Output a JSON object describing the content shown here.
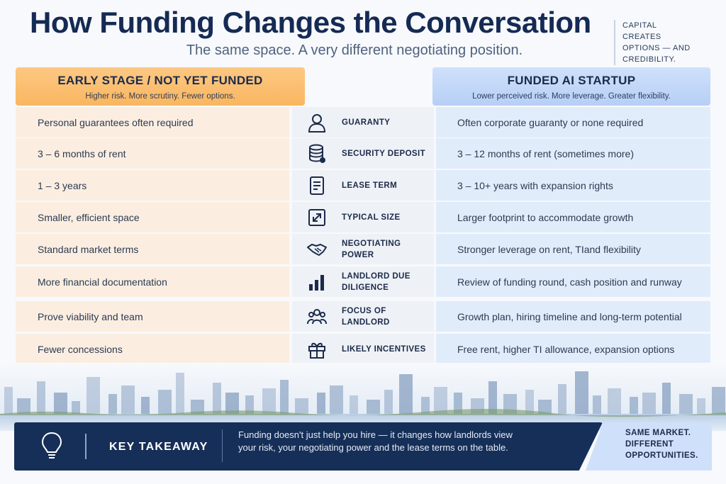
{
  "title": "How Funding Changes the Conversation",
  "subtitle": "The same space. A very different negotiating position.",
  "side_note": "CAPITAL CREATES OPTIONS — AND CREDIBILITY.",
  "left_header": {
    "title": "EARLY STAGE / NOT YET FUNDED",
    "subtitle": "Higher risk. More scrutiny. Fewer options.",
    "color": "#f9b660"
  },
  "right_header": {
    "title": "FUNDED AI STARTUP",
    "subtitle": "Lower perceived risk. More leverage. Greater flexibility.",
    "color": "#b7cff6"
  },
  "rows": [
    {
      "early": "Personal guarantees often required",
      "icon": "person-icon",
      "category": "GUARANTY",
      "funded": "Often corporate guaranty or none required"
    },
    {
      "early": "3 – 6 months of rent",
      "icon": "coin-stack-icon",
      "category": "SECURITY DEPOSIT",
      "funded": "3 – 12 months of rent (sometimes more)"
    },
    {
      "early": "1 – 3 years",
      "icon": "document-icon",
      "category": "LEASE TERM",
      "funded": "3 – 10+ years with expansion rights"
    },
    {
      "early": "Smaller, efficient space",
      "icon": "expand-arrows-icon",
      "category": "TYPICAL SIZE",
      "funded": "Larger footprint to accommodate growth"
    },
    {
      "early": "Standard market terms",
      "icon": "handshake-icon",
      "category": "NEGOTIATING POWER",
      "funded": "Stronger leverage on rent, TIand flexibility"
    },
    {
      "early": "More financial documentation",
      "icon": "bar-chart-icon",
      "category": "LANDLORD DUE DILIGENCE",
      "funded": "Review of funding round, cash position and runway"
    },
    {
      "early": "Prove viability and team",
      "icon": "team-icon",
      "category": "FOCUS OF LANDLORD",
      "funded": "Growth plan, hiring timeline and long-term potential"
    },
    {
      "early": "Fewer concessions",
      "icon": "gift-icon",
      "category": "LIKELY INCENTIVES",
      "funded": "Free rent, higher TI allowance, expansion options"
    }
  ],
  "takeaway": {
    "icon": "lightbulb-icon",
    "label": "KEY TAKEAWAY",
    "text": "Funding doesn't just help you hire — it changes how landlords view your risk, your negotiating power and the lease terms on the table."
  },
  "corner_note": "SAME MARKET. DIFFERENT OPPORTUNITIES.",
  "colors": {
    "title": "#152a54",
    "banner": "#162f58",
    "left_row": "#fbeee1",
    "mid_row": "#eef1f6",
    "right_row": "#e1ecfb"
  }
}
